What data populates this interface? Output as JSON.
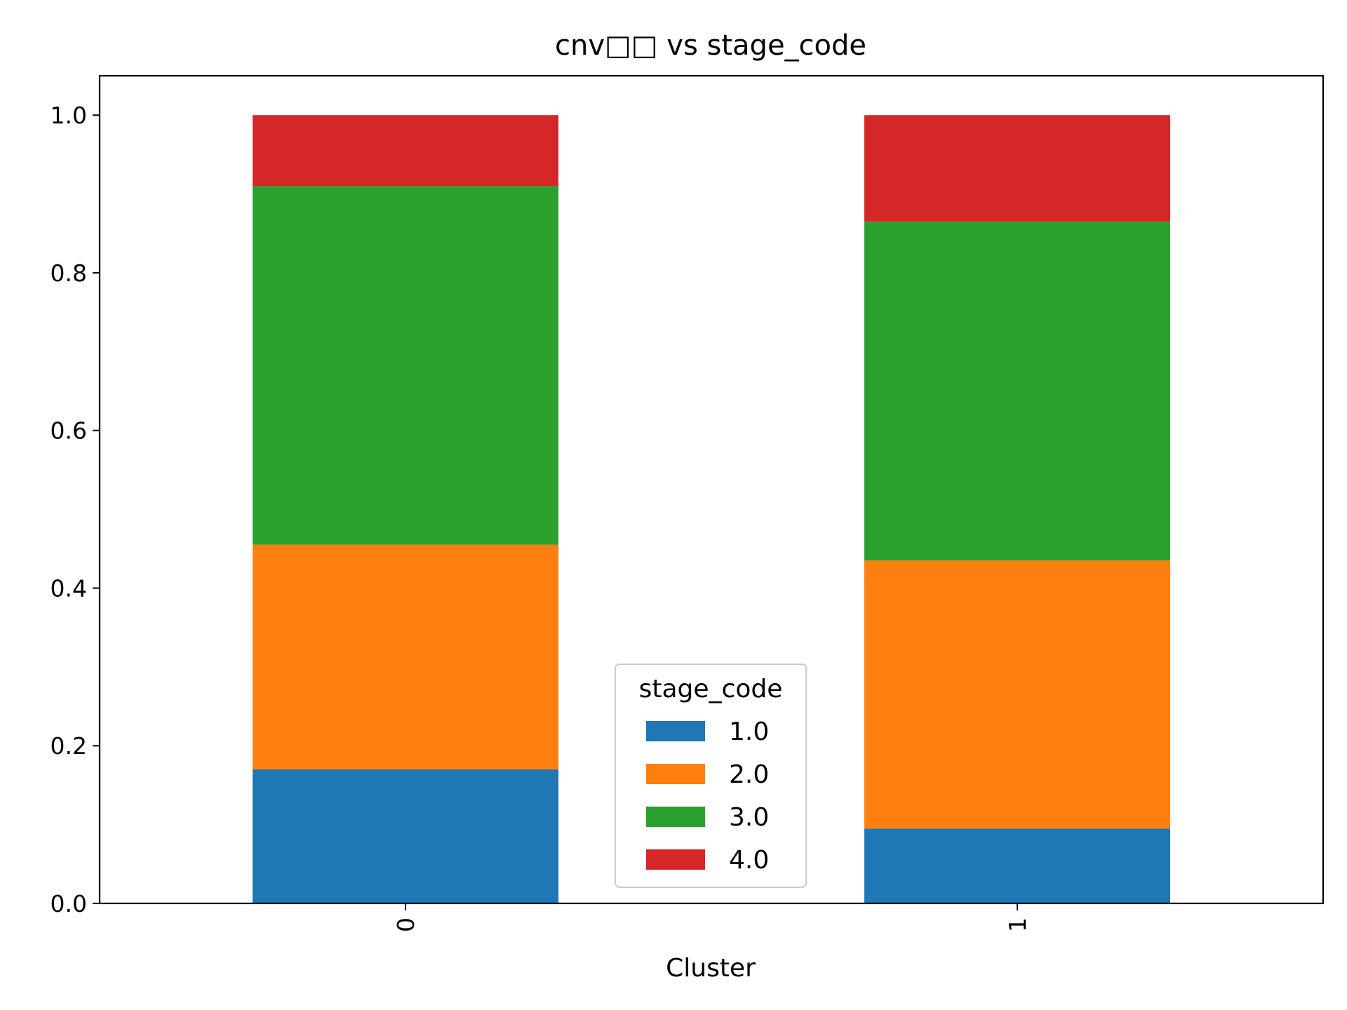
{
  "chart_data": {
    "type": "bar",
    "stacked": true,
    "title": "cnv□□ vs stage_code",
    "xlabel": "Cluster",
    "ylabel": "",
    "categories": [
      "0",
      "1"
    ],
    "ylim": [
      0,
      1.05
    ],
    "yticks": [
      "0.0",
      "0.2",
      "0.4",
      "0.6",
      "0.8",
      "1.0"
    ],
    "grid": false,
    "legend": {
      "title": "stage_code",
      "placement": "bottom-center"
    },
    "series": [
      {
        "name": "1.0",
        "color": "#1f77b4",
        "values": [
          0.17,
          0.095
        ]
      },
      {
        "name": "2.0",
        "color": "#ff7f0e",
        "values": [
          0.285,
          0.34
        ]
      },
      {
        "name": "3.0",
        "color": "#2ca02c",
        "values": [
          0.455,
          0.43
        ]
      },
      {
        "name": "4.0",
        "color": "#d62728",
        "values": [
          0.09,
          0.135
        ]
      }
    ]
  }
}
